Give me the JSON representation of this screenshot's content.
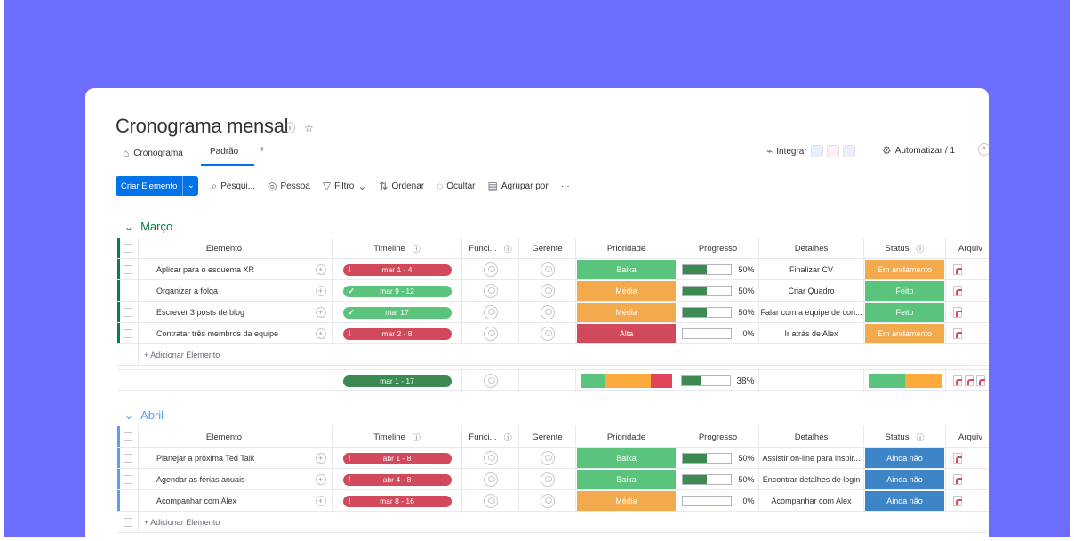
{
  "board": {
    "title": "Cronograma mensal",
    "tabs": [
      {
        "label": "Cronograma"
      },
      {
        "label": "Padrão"
      },
      {
        "label": "+"
      }
    ],
    "integrate_label": "Integrar",
    "automate_label": "Automatizar / 1"
  },
  "toolbar": {
    "create_label": "Criar Elemento",
    "search_label": "Pesqui...",
    "person_label": "Pessoa",
    "filter_label": "Filtro",
    "sort_label": "Ordenar",
    "hide_label": "Ocultar",
    "group_label": "Agrupar por",
    "more_label": "···"
  },
  "columns": {
    "item": "Elemento",
    "timeline": "Timeline",
    "func": "Funci...",
    "manager": "Gerente",
    "priority": "Prioridade",
    "progress": "Progresso",
    "details": "Detalhes",
    "status": "Status",
    "files": "Arquiv"
  },
  "colors": {
    "accent": "#0073ea",
    "march": "#037f4c",
    "april": "#579bfc",
    "red": "#e2445c",
    "green": "#00c875",
    "orange": "#fdab3d",
    "blue": "#0086c0",
    "done_green": "#5ac47d",
    "dark_green": "#3c8a52"
  },
  "groups": [
    {
      "title": "Março",
      "add_label": "+ Adicionar Elemento",
      "summary": {
        "timeline": "mar 1 - 17",
        "progress": "38%"
      },
      "rows": [
        {
          "name": "Aplicar para o esquema XR",
          "timeline": "mar 1 - 4",
          "tl_color": "#d1495b",
          "tl_mark": "!",
          "priority": "Baixa",
          "pr_color": "#5ac47d",
          "progress_text": "50%",
          "progress": 0.5,
          "details": "Finalizar CV",
          "status": "Em andamento",
          "st_color": "#f2aa4c"
        },
        {
          "name": "Organizar a folga",
          "timeline": "mar 9 - 12",
          "tl_color": "#5ac47d",
          "tl_mark": "✓",
          "priority": "Média",
          "pr_color": "#f2aa4c",
          "progress_text": "50%",
          "progress": 0.5,
          "details": "Criar Quadro",
          "status": "Feito",
          "st_color": "#5ac47d"
        },
        {
          "name": "Escrever 3 posts de blog",
          "timeline": "mar 17",
          "tl_color": "#5ac47d",
          "tl_mark": "✓",
          "priority": "Média",
          "pr_color": "#f2aa4c",
          "progress_text": "50%",
          "progress": 0.5,
          "details": "Falar com a equipe de con...",
          "status": "Feito",
          "st_color": "#5ac47d"
        },
        {
          "name": "Contratar três membros da equipe",
          "timeline": "mar 2 - 8",
          "tl_color": "#d1495b",
          "tl_mark": "!",
          "priority": "Alta",
          "pr_color": "#d1495b",
          "progress_text": "0%",
          "progress": 0,
          "details": "Ir atrás de Alex",
          "status": "Em andamento",
          "st_color": "#f2aa4c"
        }
      ]
    },
    {
      "title": "Abril",
      "add_label": "+ Adicionar Elemento",
      "rows": [
        {
          "name": "Planejar a próxima Ted Talk",
          "timeline": "abr 1 - 8",
          "tl_color": "#d1495b",
          "tl_mark": "!",
          "priority": "Baixa",
          "pr_color": "#5ac47d",
          "progress_text": "50%",
          "progress": 0.5,
          "details": "Assistir on-line para inspir...",
          "status": "Ainda não",
          "st_color": "#3d85c6"
        },
        {
          "name": "Agendar as férias anuais",
          "timeline": "abr 4 - 8",
          "tl_color": "#d1495b",
          "tl_mark": "!",
          "priority": "Baixa",
          "pr_color": "#5ac47d",
          "progress_text": "50%",
          "progress": 0.5,
          "details": "Encontrar detalhes de login",
          "status": "Ainda não",
          "st_color": "#3d85c6"
        },
        {
          "name": "Acompanhar com Alex",
          "timeline": "mar 8 - 16",
          "tl_color": "#d1495b",
          "tl_mark": "!",
          "priority": "Média",
          "pr_color": "#f2aa4c",
          "progress_text": "0%",
          "progress": 0,
          "details": "Acompanhar com Alex",
          "status": "Ainda não",
          "st_color": "#3d85c6"
        }
      ]
    }
  ]
}
